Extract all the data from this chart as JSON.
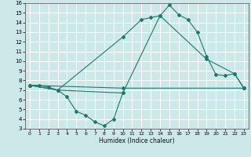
{
  "xlabel": "Humidex (Indice chaleur)",
  "xlim": [
    -0.5,
    23.5
  ],
  "ylim": [
    3,
    16
  ],
  "xticks": [
    0,
    1,
    2,
    3,
    4,
    5,
    6,
    7,
    8,
    9,
    10,
    11,
    12,
    13,
    14,
    15,
    16,
    17,
    18,
    19,
    20,
    21,
    22,
    23
  ],
  "yticks": [
    3,
    4,
    5,
    6,
    7,
    8,
    9,
    10,
    11,
    12,
    13,
    14,
    15,
    16
  ],
  "background_color": "#cce8e8",
  "grid_color": "#ffffff",
  "line_color": "#1a7a6e",
  "series": [
    {
      "x": [
        0,
        1,
        2,
        3,
        4,
        5,
        6,
        7,
        8,
        9,
        10
      ],
      "y": [
        7.5,
        7.5,
        7.3,
        7.0,
        6.3,
        4.8,
        4.4,
        3.7,
        3.3,
        4.0,
        6.7
      ]
    },
    {
      "x": [
        0,
        3,
        10,
        12,
        13,
        14,
        15,
        16,
        17,
        18,
        19,
        20,
        21,
        22,
        23
      ],
      "y": [
        7.5,
        7.0,
        12.5,
        14.3,
        14.5,
        14.7,
        15.8,
        14.8,
        14.3,
        13.0,
        10.5,
        8.6,
        8.5,
        8.7,
        7.2
      ]
    },
    {
      "x": [
        0,
        3,
        10,
        14,
        19,
        22,
        23
      ],
      "y": [
        7.5,
        7.0,
        6.7,
        14.7,
        10.2,
        8.7,
        7.2
      ]
    },
    {
      "x": [
        0,
        10,
        23
      ],
      "y": [
        7.5,
        7.2,
        7.2
      ]
    }
  ]
}
